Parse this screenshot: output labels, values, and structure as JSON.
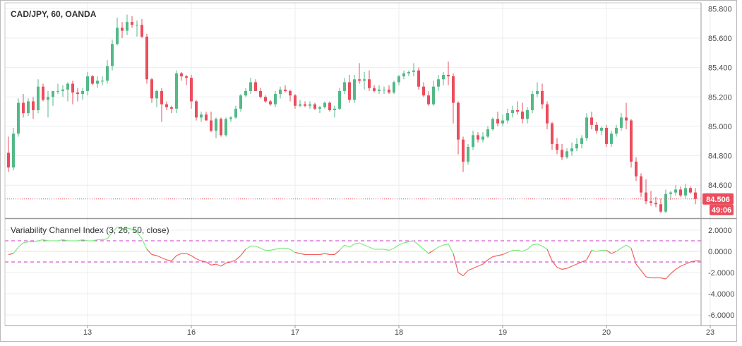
{
  "chart_data": {
    "type": "candlestick",
    "title": "CAD/JPY, 60, OANDA",
    "price_axis": {
      "range": [
        84.38,
        85.84
      ],
      "ticks": [
        "85.800",
        "85.600",
        "85.400",
        "85.200",
        "85.000",
        "84.800",
        "84.600"
      ],
      "last_price_label": "84.506",
      "countdown_label": "49:06"
    },
    "x_axis": {
      "tick_labels": [
        "13",
        "16",
        "17",
        "18",
        "19",
        "20",
        "23"
      ]
    },
    "candles": [
      [
        84.82,
        84.93,
        84.69,
        84.72
      ],
      [
        84.72,
        84.99,
        84.7,
        84.95
      ],
      [
        84.95,
        85.19,
        84.93,
        85.16
      ],
      [
        85.16,
        85.22,
        85.06,
        85.09
      ],
      [
        85.09,
        85.19,
        85.07,
        85.17
      ],
      [
        85.17,
        85.2,
        85.05,
        85.11
      ],
      [
        85.11,
        85.32,
        85.09,
        85.27
      ],
      [
        85.27,
        85.29,
        85.17,
        85.18
      ],
      [
        85.18,
        85.24,
        85.06,
        85.2
      ],
      [
        85.2,
        85.24,
        85.14,
        85.24
      ],
      [
        85.24,
        85.29,
        85.22,
        85.24
      ],
      [
        85.24,
        85.28,
        85.2,
        85.25
      ],
      [
        85.25,
        85.3,
        85.17,
        85.29
      ],
      [
        85.29,
        85.31,
        85.15,
        85.23
      ],
      [
        85.23,
        85.26,
        85.17,
        85.22
      ],
      [
        85.22,
        85.26,
        85.18,
        85.24
      ],
      [
        85.24,
        85.37,
        85.21,
        85.34
      ],
      [
        85.34,
        85.35,
        85.28,
        85.29
      ],
      [
        85.29,
        85.34,
        85.26,
        85.31
      ],
      [
        85.31,
        85.34,
        85.28,
        85.31
      ],
      [
        85.31,
        85.45,
        85.29,
        85.41
      ],
      [
        85.41,
        85.59,
        85.38,
        85.56
      ],
      [
        85.56,
        85.74,
        85.55,
        85.67
      ],
      [
        85.67,
        85.71,
        85.6,
        85.65
      ],
      [
        85.65,
        85.76,
        85.62,
        85.71
      ],
      [
        85.71,
        85.75,
        85.67,
        85.69
      ],
      [
        85.69,
        85.72,
        85.61,
        85.69
      ],
      [
        85.69,
        85.73,
        85.6,
        85.61
      ],
      [
        85.61,
        85.63,
        85.29,
        85.32
      ],
      [
        85.32,
        85.33,
        85.16,
        85.19
      ],
      [
        85.19,
        85.25,
        85.13,
        85.24
      ],
      [
        85.24,
        85.26,
        85.03,
        85.15
      ],
      [
        85.15,
        85.17,
        85.11,
        85.13
      ],
      [
        85.13,
        85.14,
        85.09,
        85.12
      ],
      [
        85.12,
        85.38,
        85.09,
        85.36
      ],
      [
        85.36,
        85.37,
        85.31,
        85.34
      ],
      [
        85.34,
        85.35,
        85.28,
        85.33
      ],
      [
        85.33,
        85.35,
        85.12,
        85.17
      ],
      [
        85.17,
        85.18,
        85.04,
        85.06
      ],
      [
        85.06,
        85.1,
        85.03,
        85.08
      ],
      [
        85.08,
        85.1,
        85.04,
        85.04
      ],
      [
        85.04,
        85.1,
        84.96,
        84.97
      ],
      [
        84.97,
        85.06,
        84.92,
        85.05
      ],
      [
        85.05,
        85.06,
        84.93,
        84.94
      ],
      [
        84.94,
        85.06,
        84.93,
        85.05
      ],
      [
        85.05,
        85.07,
        85.03,
        85.06
      ],
      [
        85.06,
        85.14,
        85.05,
        85.12
      ],
      [
        85.12,
        85.22,
        85.1,
        85.21
      ],
      [
        85.21,
        85.26,
        85.2,
        85.24
      ],
      [
        85.24,
        85.33,
        85.22,
        85.3
      ],
      [
        85.3,
        85.32,
        85.25,
        85.24
      ],
      [
        85.24,
        85.26,
        85.19,
        85.2
      ],
      [
        85.2,
        85.21,
        85.16,
        85.17
      ],
      [
        85.17,
        85.18,
        85.14,
        85.15
      ],
      [
        85.15,
        85.24,
        85.13,
        85.22
      ],
      [
        85.22,
        85.27,
        85.19,
        85.25
      ],
      [
        85.25,
        85.28,
        85.23,
        85.24
      ],
      [
        85.24,
        85.25,
        85.17,
        85.21
      ],
      [
        85.21,
        85.22,
        85.12,
        85.14
      ],
      [
        85.14,
        85.18,
        85.13,
        85.15
      ],
      [
        85.15,
        85.17,
        85.13,
        85.14
      ],
      [
        85.14,
        85.17,
        85.12,
        85.15
      ],
      [
        85.15,
        85.16,
        85.11,
        85.12
      ],
      [
        85.12,
        85.14,
        85.09,
        85.13
      ],
      [
        85.13,
        85.17,
        85.12,
        85.16
      ],
      [
        85.16,
        85.17,
        85.1,
        85.11
      ],
      [
        85.11,
        85.14,
        85.06,
        85.12
      ],
      [
        85.12,
        85.26,
        85.11,
        85.24
      ],
      [
        85.24,
        85.33,
        85.22,
        85.3
      ],
      [
        85.3,
        85.35,
        85.16,
        85.18
      ],
      [
        85.18,
        85.35,
        85.16,
        85.32
      ],
      [
        85.32,
        85.43,
        85.29,
        85.31
      ],
      [
        85.31,
        85.37,
        85.25,
        85.32
      ],
      [
        85.32,
        85.38,
        85.24,
        85.26
      ],
      [
        85.26,
        85.28,
        85.23,
        85.24
      ],
      [
        85.24,
        85.28,
        85.22,
        85.25
      ],
      [
        85.25,
        85.27,
        85.22,
        85.25
      ],
      [
        85.25,
        85.28,
        85.22,
        85.23
      ],
      [
        85.23,
        85.31,
        85.22,
        85.3
      ],
      [
        85.3,
        85.35,
        85.28,
        85.34
      ],
      [
        85.34,
        85.38,
        85.32,
        85.36
      ],
      [
        85.36,
        85.38,
        85.34,
        85.37
      ],
      [
        85.37,
        85.43,
        85.34,
        85.38
      ],
      [
        85.38,
        85.4,
        85.25,
        85.27
      ],
      [
        85.27,
        85.3,
        85.2,
        85.21
      ],
      [
        85.21,
        85.24,
        85.14,
        85.15
      ],
      [
        85.15,
        85.31,
        85.14,
        85.27
      ],
      [
        85.27,
        85.35,
        85.24,
        85.32
      ],
      [
        85.32,
        85.37,
        85.28,
        85.35
      ],
      [
        85.35,
        85.44,
        85.28,
        85.34
      ],
      [
        85.34,
        85.36,
        85.02,
        85.16
      ],
      [
        85.16,
        85.17,
        84.81,
        84.91
      ],
      [
        84.91,
        84.93,
        84.69,
        84.76
      ],
      [
        84.76,
        84.88,
        84.74,
        84.86
      ],
      [
        84.86,
        84.97,
        84.84,
        84.94
      ],
      [
        84.94,
        84.96,
        84.89,
        84.91
      ],
      [
        84.91,
        84.96,
        84.89,
        84.93
      ],
      [
        84.93,
        85.0,
        84.92,
        84.98
      ],
      [
        84.98,
        85.06,
        84.97,
        85.05
      ],
      [
        85.05,
        85.1,
        85.0,
        85.02
      ],
      [
        85.02,
        85.08,
        85.0,
        85.04
      ],
      [
        85.04,
        85.12,
        85.02,
        85.09
      ],
      [
        85.09,
        85.14,
        85.06,
        85.11
      ],
      [
        85.11,
        85.17,
        85.08,
        85.1
      ],
      [
        85.1,
        85.16,
        85.02,
        85.05
      ],
      [
        85.05,
        85.13,
        85.02,
        85.11
      ],
      [
        85.11,
        85.24,
        85.09,
        85.22
      ],
      [
        85.22,
        85.3,
        85.2,
        85.24
      ],
      [
        85.24,
        85.29,
        85.12,
        85.15
      ],
      [
        85.15,
        85.17,
        84.98,
        85.02
      ],
      [
        85.02,
        85.03,
        84.84,
        84.88
      ],
      [
        84.88,
        84.92,
        84.81,
        84.84
      ],
      [
        84.84,
        84.88,
        84.77,
        84.79
      ],
      [
        84.79,
        84.85,
        84.78,
        84.83
      ],
      [
        84.83,
        84.89,
        84.8,
        84.85
      ],
      [
        84.85,
        84.92,
        84.83,
        84.88
      ],
      [
        84.88,
        84.94,
        84.85,
        84.92
      ],
      [
        84.92,
        85.09,
        84.9,
        85.06
      ],
      [
        85.06,
        85.1,
        84.98,
        85.01
      ],
      [
        85.01,
        85.03,
        84.95,
        84.97
      ],
      [
        84.97,
        85.0,
        84.94,
        84.99
      ],
      [
        84.99,
        85.01,
        84.86,
        84.88
      ],
      [
        84.88,
        84.97,
        84.86,
        84.95
      ],
      [
        84.95,
        85.01,
        84.93,
        84.99
      ],
      [
        84.99,
        85.09,
        84.97,
        85.06
      ],
      [
        85.06,
        85.16,
        84.98,
        85.04
      ],
      [
        85.04,
        85.05,
        84.72,
        84.76
      ],
      [
        84.76,
        84.79,
        84.63,
        84.66
      ],
      [
        84.66,
        84.68,
        84.52,
        84.55
      ],
      [
        84.55,
        84.64,
        84.47,
        84.49
      ],
      [
        84.49,
        84.56,
        84.46,
        84.48
      ],
      [
        84.48,
        84.52,
        84.45,
        84.47
      ],
      [
        84.47,
        84.51,
        84.41,
        84.42
      ],
      [
        84.42,
        84.57,
        84.41,
        84.54
      ],
      [
        84.54,
        84.56,
        84.5,
        84.55
      ],
      [
        84.55,
        84.6,
        84.53,
        84.57
      ],
      [
        84.57,
        84.59,
        84.52,
        84.53
      ],
      [
        84.53,
        84.61,
        84.51,
        84.58
      ],
      [
        84.58,
        84.59,
        84.54,
        84.55
      ],
      [
        84.55,
        84.58,
        84.47,
        84.506
      ]
    ],
    "indicator": {
      "title": "Variability Channel Index (3, 26, 50, close)",
      "range": [
        -7.0,
        3.0
      ],
      "ticks": [
        "2.0000",
        "0.0000",
        "-2.0000",
        "-4.0000",
        "-6.0000"
      ],
      "upper_band": 1.0,
      "lower_band": -1.0,
      "mid_line": 0.0,
      "values": [
        -0.3,
        -0.2,
        0.4,
        0.8,
        0.9,
        0.9,
        1.0,
        1.1,
        1.0,
        1.0,
        1.0,
        1.1,
        1.0,
        1.0,
        1.0,
        1.1,
        1.0,
        1.0,
        1.1,
        1.1,
        1.2,
        1.8,
        2.3,
        2.1,
        2.2,
        2.1,
        1.8,
        1.2,
        0.2,
        -0.3,
        -0.4,
        -0.6,
        -0.8,
        -0.9,
        -0.4,
        -0.2,
        -0.2,
        -0.4,
        -0.7,
        -0.9,
        -1.0,
        -1.3,
        -1.2,
        -1.4,
        -1.1,
        -1.0,
        -0.8,
        -0.4,
        0.2,
        0.5,
        0.5,
        0.3,
        0.1,
        0.1,
        0.2,
        0.3,
        0.3,
        0.2,
        -0.1,
        -0.2,
        -0.3,
        -0.3,
        -0.3,
        -0.3,
        -0.2,
        -0.3,
        -0.3,
        0.1,
        0.6,
        0.4,
        0.7,
        0.8,
        0.6,
        0.4,
        0.2,
        0.2,
        0.2,
        0.1,
        0.3,
        0.6,
        0.8,
        0.9,
        1.0,
        0.6,
        0.2,
        -0.2,
        0.1,
        0.4,
        0.6,
        0.7,
        -0.2,
        -2.0,
        -2.3,
        -1.8,
        -1.6,
        -1.4,
        -1.2,
        -0.8,
        -0.5,
        -0.4,
        -0.3,
        -0.1,
        0.1,
        0.1,
        0.0,
        0.2,
        0.6,
        0.7,
        0.5,
        0.2,
        -0.9,
        -1.5,
        -1.7,
        -1.6,
        -1.4,
        -1.2,
        -1.0,
        -0.8,
        0.1,
        0.0,
        0.1,
        0.1,
        -0.2,
        0.0,
        0.3,
        0.6,
        0.3,
        -1.2,
        -1.8,
        -2.4,
        -2.5,
        -2.5,
        -2.5,
        -2.6,
        -2.1,
        -1.7,
        -1.4,
        -1.2,
        -1.0,
        -0.9,
        -0.9
      ]
    },
    "colors": {
      "up": "#53b987",
      "down": "#eb4d5c",
      "indicator_up": "#7fe87f",
      "indicator_down": "#f06060",
      "band": "#cc33cc",
      "midline": "#e6e66a",
      "grid": "#e9eef2",
      "axis_text": "#4a4a4a",
      "label_bg": "#eb4d5c"
    }
  }
}
